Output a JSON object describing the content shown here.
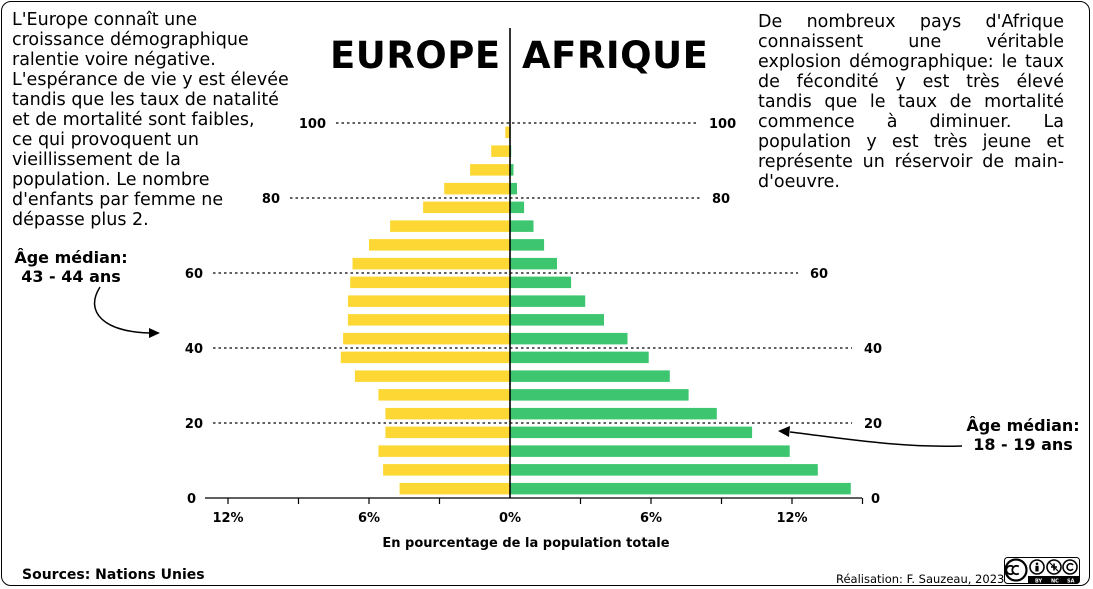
{
  "texts": {
    "left_paragraph": "  L'Europe connaît une\ncroissance démographique\nralentie voire négative.\nL'espérance de vie y est élevée\ntandis que les taux de natalité\net de mortalité sont faibles,\nce qui provoquent un\nvieillissement de la\npopulation. Le nombre\nd'enfants par femme ne\n dépasse plus 2.",
    "right_paragraph": "De nombreux pays d'Afrique connaissent une véritable explosion démographique: le taux de fécondité y est très élevé tandis que le taux de mortalité commence à diminuer. La population y est très jeune et représente un réservoir de main-d'oeuvre.",
    "title_left": "EUROPE",
    "title_right": "AFRIQUE",
    "median_left_label": "Âge médian:",
    "median_left_value": "43 - 44 ans",
    "median_right_label": "Âge médian:",
    "median_right_value": "18 - 19 ans",
    "sources": "Sources: Nations Unies",
    "credit": "Réalisation: F. Sauzeau, 2023"
  },
  "colors": {
    "europe": "#FDD835",
    "afrique": "#3DC56F",
    "ink": "#000000"
  },
  "icons": [
    "creative-commons-by-nc-sa-icon"
  ],
  "chart_data": {
    "type": "bar",
    "orientation": "horizontal",
    "layout": "population-pyramid",
    "xlabel": "En pourcentage de la population totale",
    "x_ticks": [
      "12%",
      "6%",
      "0%",
      "6%",
      "12%"
    ],
    "x_tick_values": [
      -12,
      -6,
      0,
      6,
      12
    ],
    "xlim": [
      -12,
      15
    ],
    "age_ticks": [
      0,
      20,
      40,
      60,
      80,
      100
    ],
    "age_groups": [
      "0-4",
      "5-9",
      "10-14",
      "15-19",
      "20-24",
      "25-29",
      "30-34",
      "35-39",
      "40-44",
      "45-49",
      "50-54",
      "55-59",
      "60-64",
      "65-69",
      "70-74",
      "75-79",
      "80-84",
      "85-89",
      "90-94",
      "95-99",
      "100+"
    ],
    "series": [
      {
        "name": "EUROPE",
        "side": "left",
        "values": [
          4.7,
          5.4,
          5.6,
          5.3,
          5.3,
          5.6,
          6.6,
          7.2,
          7.1,
          6.9,
          6.9,
          6.8,
          6.7,
          6.0,
          5.1,
          3.7,
          2.8,
          1.7,
          0.8,
          0.2,
          0.0
        ]
      },
      {
        "name": "AFRIQUE",
        "side": "right",
        "values": [
          14.5,
          13.1,
          11.9,
          10.3,
          8.8,
          7.6,
          6.8,
          5.9,
          5.0,
          4.0,
          3.2,
          2.6,
          2.0,
          1.45,
          1.0,
          0.6,
          0.3,
          0.15,
          0.05,
          0.0,
          0.0
        ]
      }
    ]
  }
}
